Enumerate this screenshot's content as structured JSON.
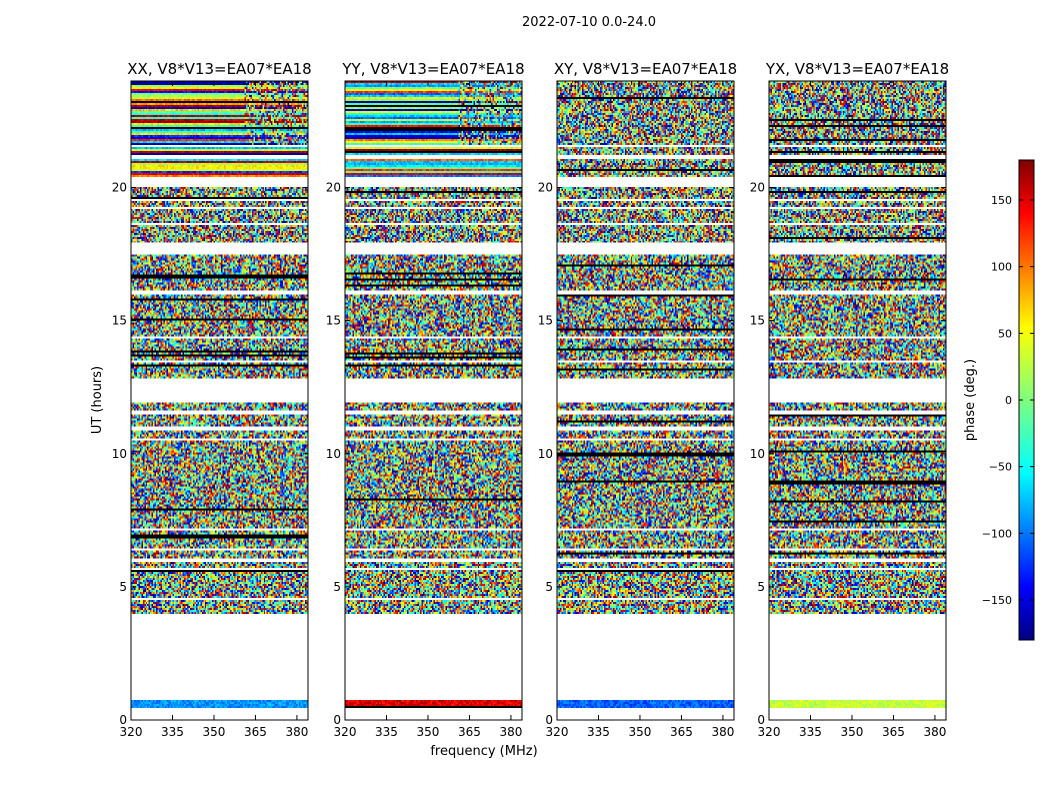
{
  "figure": {
    "suptitle": "2022-07-10 0.0-24.0",
    "shared_xlabel": "frequency (MHz)",
    "shared_ylabel": "UT (hours)"
  },
  "chart_data": [
    {
      "type": "heatmap",
      "title": "XX, V8*V13=EA07*EA18",
      "x_ticks": [
        320,
        335,
        350,
        365,
        380
      ],
      "y_ticks": [
        0,
        5,
        10,
        15,
        20
      ],
      "xlim": [
        320,
        384
      ],
      "ylim": [
        0,
        24
      ]
    },
    {
      "type": "heatmap",
      "title": "YY, V8*V13=EA07*EA18",
      "x_ticks": [
        320,
        335,
        350,
        365,
        380
      ],
      "y_ticks": [
        0,
        5,
        10,
        15,
        20
      ],
      "xlim": [
        320,
        384
      ],
      "ylim": [
        0,
        24
      ]
    },
    {
      "type": "heatmap",
      "title": "XY, V8*V13=EA07*EA18",
      "x_ticks": [
        320,
        335,
        350,
        365,
        380
      ],
      "y_ticks": [
        0,
        5,
        10,
        15,
        20
      ],
      "xlim": [
        320,
        384
      ],
      "ylim": [
        0,
        24
      ]
    },
    {
      "type": "heatmap",
      "title": "YX, V8*V13=EA07*EA18",
      "x_ticks": [
        320,
        335,
        350,
        365,
        380
      ],
      "y_ticks": [
        0,
        5,
        10,
        15,
        20
      ],
      "xlim": [
        320,
        384
      ],
      "ylim": [
        0,
        24
      ]
    }
  ],
  "colorbar": {
    "label": "phase (deg.)",
    "ticks": [
      150,
      100,
      50,
      0,
      -50,
      -100,
      -150
    ],
    "range": [
      -180,
      180
    ],
    "colormap": "jet"
  },
  "data_bands": [
    [
      0.45,
      0.75
    ],
    [
      4.0,
      4.5
    ],
    [
      4.6,
      5.6
    ],
    [
      5.7,
      5.95
    ],
    [
      6.05,
      6.4
    ],
    [
      6.45,
      7.1
    ],
    [
      7.2,
      10.5
    ],
    [
      10.6,
      10.9
    ],
    [
      11.0,
      11.5
    ],
    [
      11.6,
      11.95
    ],
    [
      12.8,
      13.4
    ],
    [
      13.5,
      14.3
    ],
    [
      14.4,
      16.0
    ],
    [
      16.1,
      17.5
    ],
    [
      17.9,
      18.6
    ],
    [
      18.7,
      19.2
    ],
    [
      19.3,
      19.5
    ],
    [
      19.6,
      20.0
    ],
    [
      20.4,
      21.1
    ],
    [
      21.2,
      21.5
    ],
    [
      21.6,
      24.0
    ]
  ],
  "colors": {
    "jet_stops": [
      "#000080",
      "#0000ff",
      "#00ffff",
      "#7fff7f",
      "#ffff00",
      "#ff0000",
      "#800000"
    ]
  }
}
